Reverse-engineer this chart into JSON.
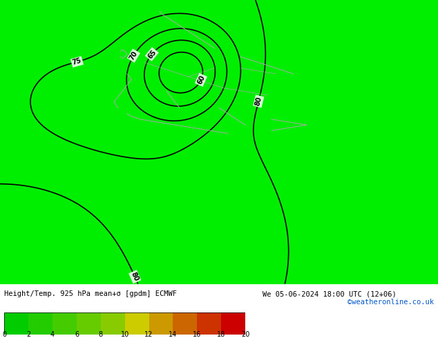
{
  "title_left": "Height/Temp. 925 hPa mean+σ [gpdm] ECMWF",
  "title_right": "We 05-06-2024 18:00 UTC (12+06)",
  "colorbar_label_right": "©weatheronline.co.uk",
  "colorbar_ticks": [
    0,
    2,
    4,
    6,
    8,
    10,
    12,
    14,
    16,
    18,
    20
  ],
  "background_color": "#00ee00",
  "map_bg": "#00ee00",
  "colorbar_colors": [
    "#00c800",
    "#32c800",
    "#64c800",
    "#96c800",
    "#c8c800",
    "#c89600",
    "#c86400",
    "#c83200",
    "#c80000",
    "#960000",
    "#640000"
  ],
  "figsize": [
    6.34,
    4.9
  ],
  "dpi": 100
}
